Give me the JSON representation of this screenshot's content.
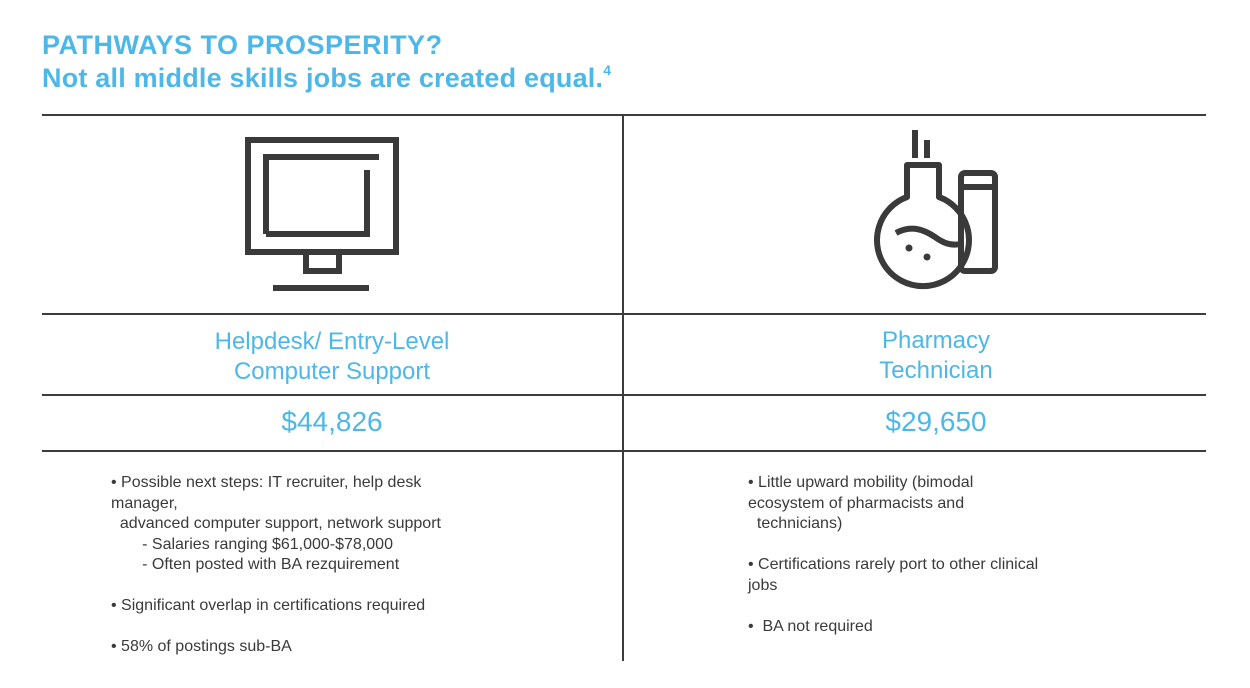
{
  "header": {
    "title": "PATHWAYS TO PROSPERITY?",
    "subtitle": "Not all middle skills jobs are created equal.",
    "subtitle_footnote": "4"
  },
  "left_column": {
    "icon": "computer-monitor-icon",
    "job_title_line1": "Helpdesk/ Entry-Level",
    "job_title_line2": "Computer Support",
    "salary": "$44,826",
    "details": [
      "• Possible next steps: IT recruiter, help desk",
      "manager,",
      "  advanced computer support, network support",
      "       - Salaries ranging $61,000-$78,000",
      "       - Often posted with BA rezquirement",
      "",
      "• Significant overlap in certifications required",
      "",
      "• 58% of postings sub-BA"
    ]
  },
  "right_column": {
    "icon": "flask-test-tube-icon",
    "job_title_line1": "Pharmacy",
    "job_title_line2": "Technician",
    "salary": "$29,650",
    "details": [
      "• Little upward mobility (bimodal",
      "ecosystem of pharmacists and",
      "  technicians)",
      "",
      "• Certifications rarely port to other clinical",
      "jobs",
      "",
      "•  BA not required"
    ]
  },
  "colors": {
    "accent": "#4db8e8",
    "text": "#3a3a3a",
    "rule": "#3c3c3c"
  }
}
